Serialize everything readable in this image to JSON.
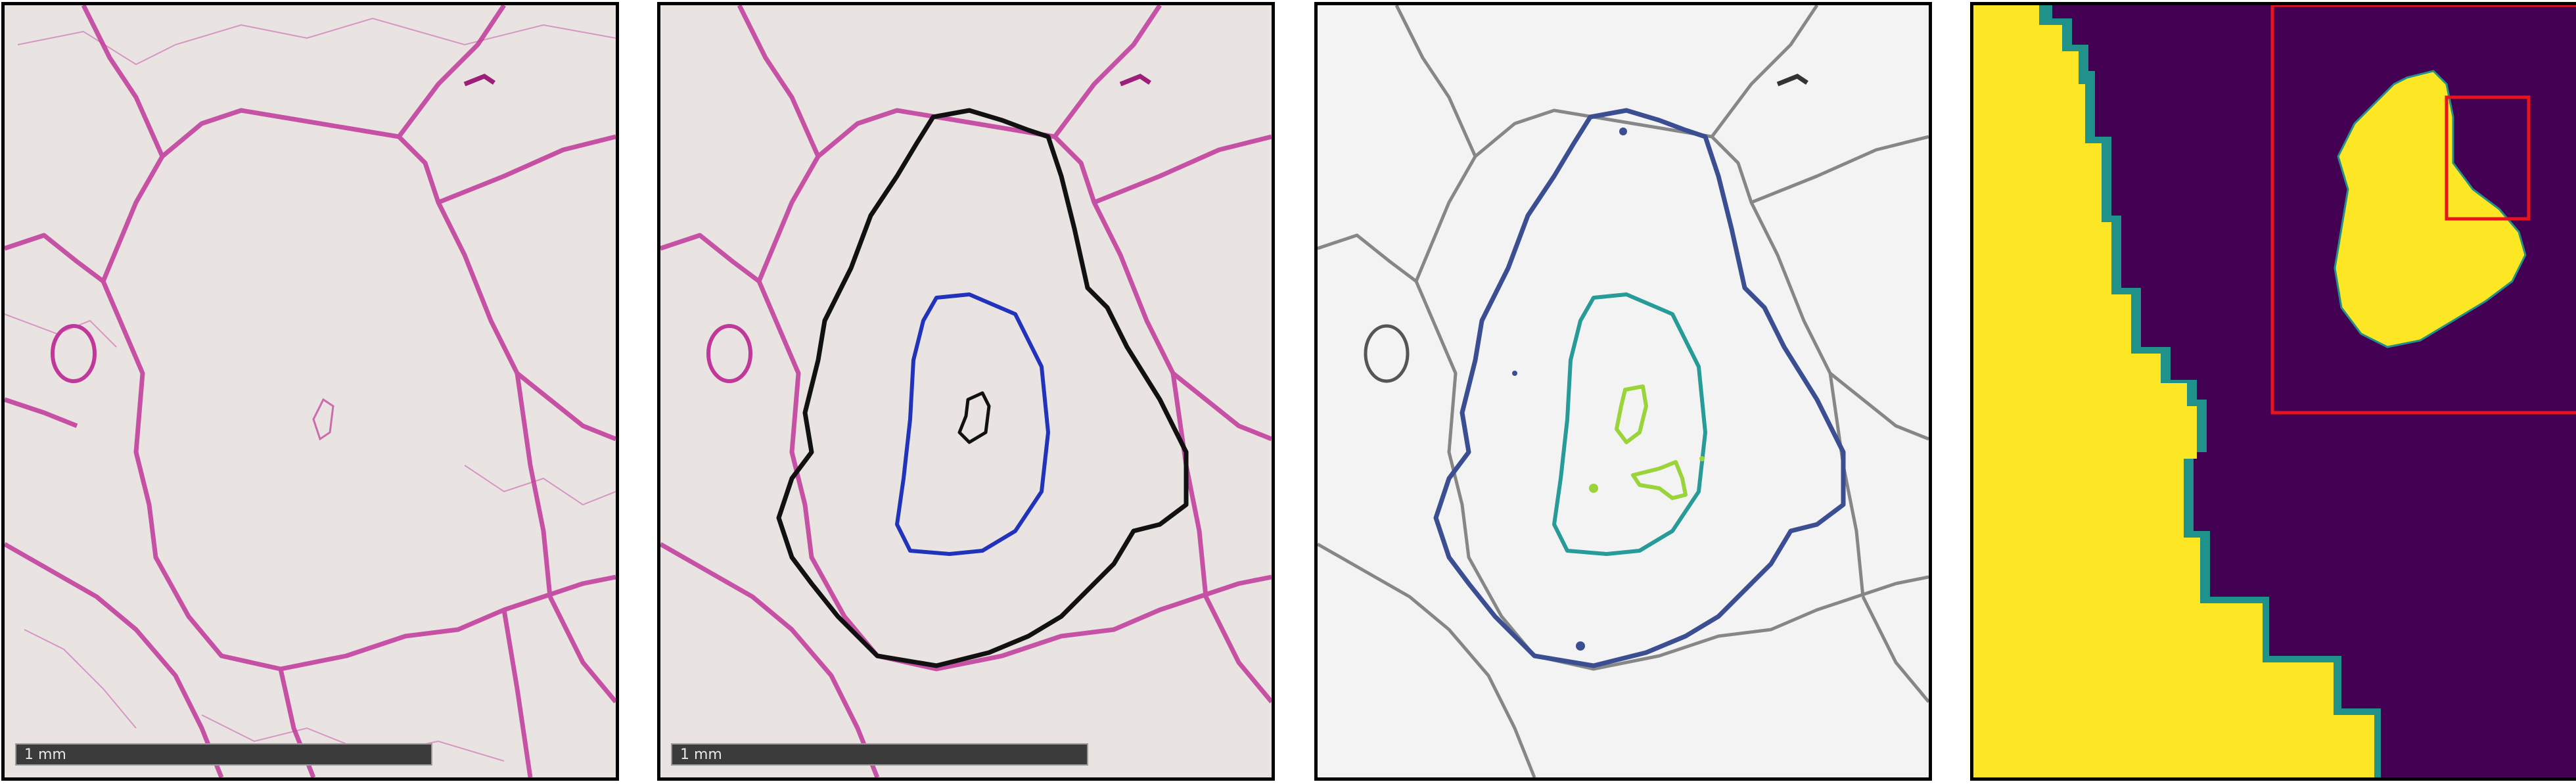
{
  "panels": [
    {
      "id": "he-stain",
      "scale_label": "1 mm"
    },
    {
      "id": "he-contours",
      "scale_label": "1 mm"
    },
    {
      "id": "gray-segmentation"
    },
    {
      "id": "mask-viridis"
    }
  ],
  "colors": {
    "tissue_bg": "#e9e3e2",
    "stroma": "#c0389a",
    "outer_contour": "#111111",
    "inner_contour": "#2233bb",
    "gray_outer": "#3a4e91",
    "gray_inner": "#269b98",
    "gray_core": "#9bd43a",
    "viridis_dark": "#440154",
    "viridis_teal": "#21918c",
    "viridis_yellow": "#fde725",
    "highlight_box": "#e8131b"
  }
}
